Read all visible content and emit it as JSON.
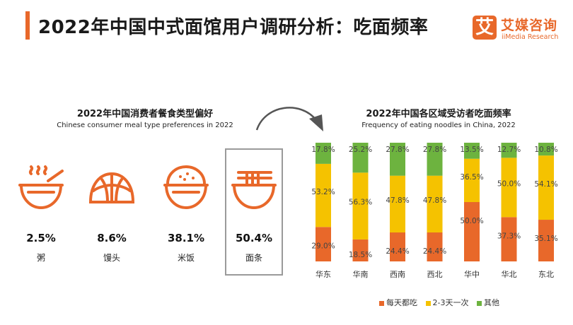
{
  "header": {
    "title": "2022年中国中式面馆用户调研分析：吃面频率",
    "logo_mark": "艾",
    "logo_cn": "艾媒咨询",
    "logo_en": "iiMedia Research"
  },
  "left_panel": {
    "title": "2022年中国消费者餐食类型偏好",
    "subtitle": "Chinese consumer meal type preferences in 2022",
    "items": [
      {
        "name": "粥",
        "value": "2.5%",
        "icon": "porridge-bowl-icon"
      },
      {
        "name": "馒头",
        "value": "8.6%",
        "icon": "steamed-bun-icon"
      },
      {
        "name": "米饭",
        "value": "38.1%",
        "icon": "rice-bowl-icon"
      },
      {
        "name": "面条",
        "value": "50.4%",
        "icon": "noodle-bowl-icon",
        "highlighted": true
      }
    ]
  },
  "chart_data": {
    "type": "bar",
    "stacked": true,
    "title": "2022年中国各区域受访者吃面频率",
    "subtitle": "Frequency of eating noodles in China, 2022",
    "categories": [
      "华东",
      "华南",
      "西南",
      "西北",
      "华中",
      "华北",
      "东北"
    ],
    "series": [
      {
        "name": "每天都吃",
        "color": "#e8682a",
        "values": [
          29.0,
          18.5,
          24.4,
          24.4,
          50.0,
          37.3,
          35.1
        ]
      },
      {
        "name": "2-3天一次",
        "color": "#f5c200",
        "values": [
          53.2,
          56.3,
          47.8,
          47.8,
          36.5,
          50.0,
          54.1
        ]
      },
      {
        "name": "其他",
        "color": "#6db33f",
        "values": [
          17.8,
          25.2,
          27.8,
          27.8,
          13.5,
          12.7,
          10.8
        ]
      }
    ],
    "labels": [
      [
        "29.0%",
        "18.5%",
        "24.4%",
        "24.4%",
        "50.0%",
        "37.3%",
        "35.1%"
      ],
      [
        "53.2%",
        "56.3%",
        "47.8%",
        "47.8%",
        "36.5%",
        "50.0%",
        "54.1%"
      ],
      [
        "17.8%",
        "25.2%",
        "27.8%",
        "27.8%",
        "13.5%",
        "12.7%",
        "10.8%"
      ]
    ],
    "ylim": [
      0,
      100
    ],
    "grid": false,
    "legend_position": "bottom"
  },
  "colors": {
    "accent": "#e8682a",
    "yellow": "#f5c200",
    "green": "#6db33f"
  }
}
